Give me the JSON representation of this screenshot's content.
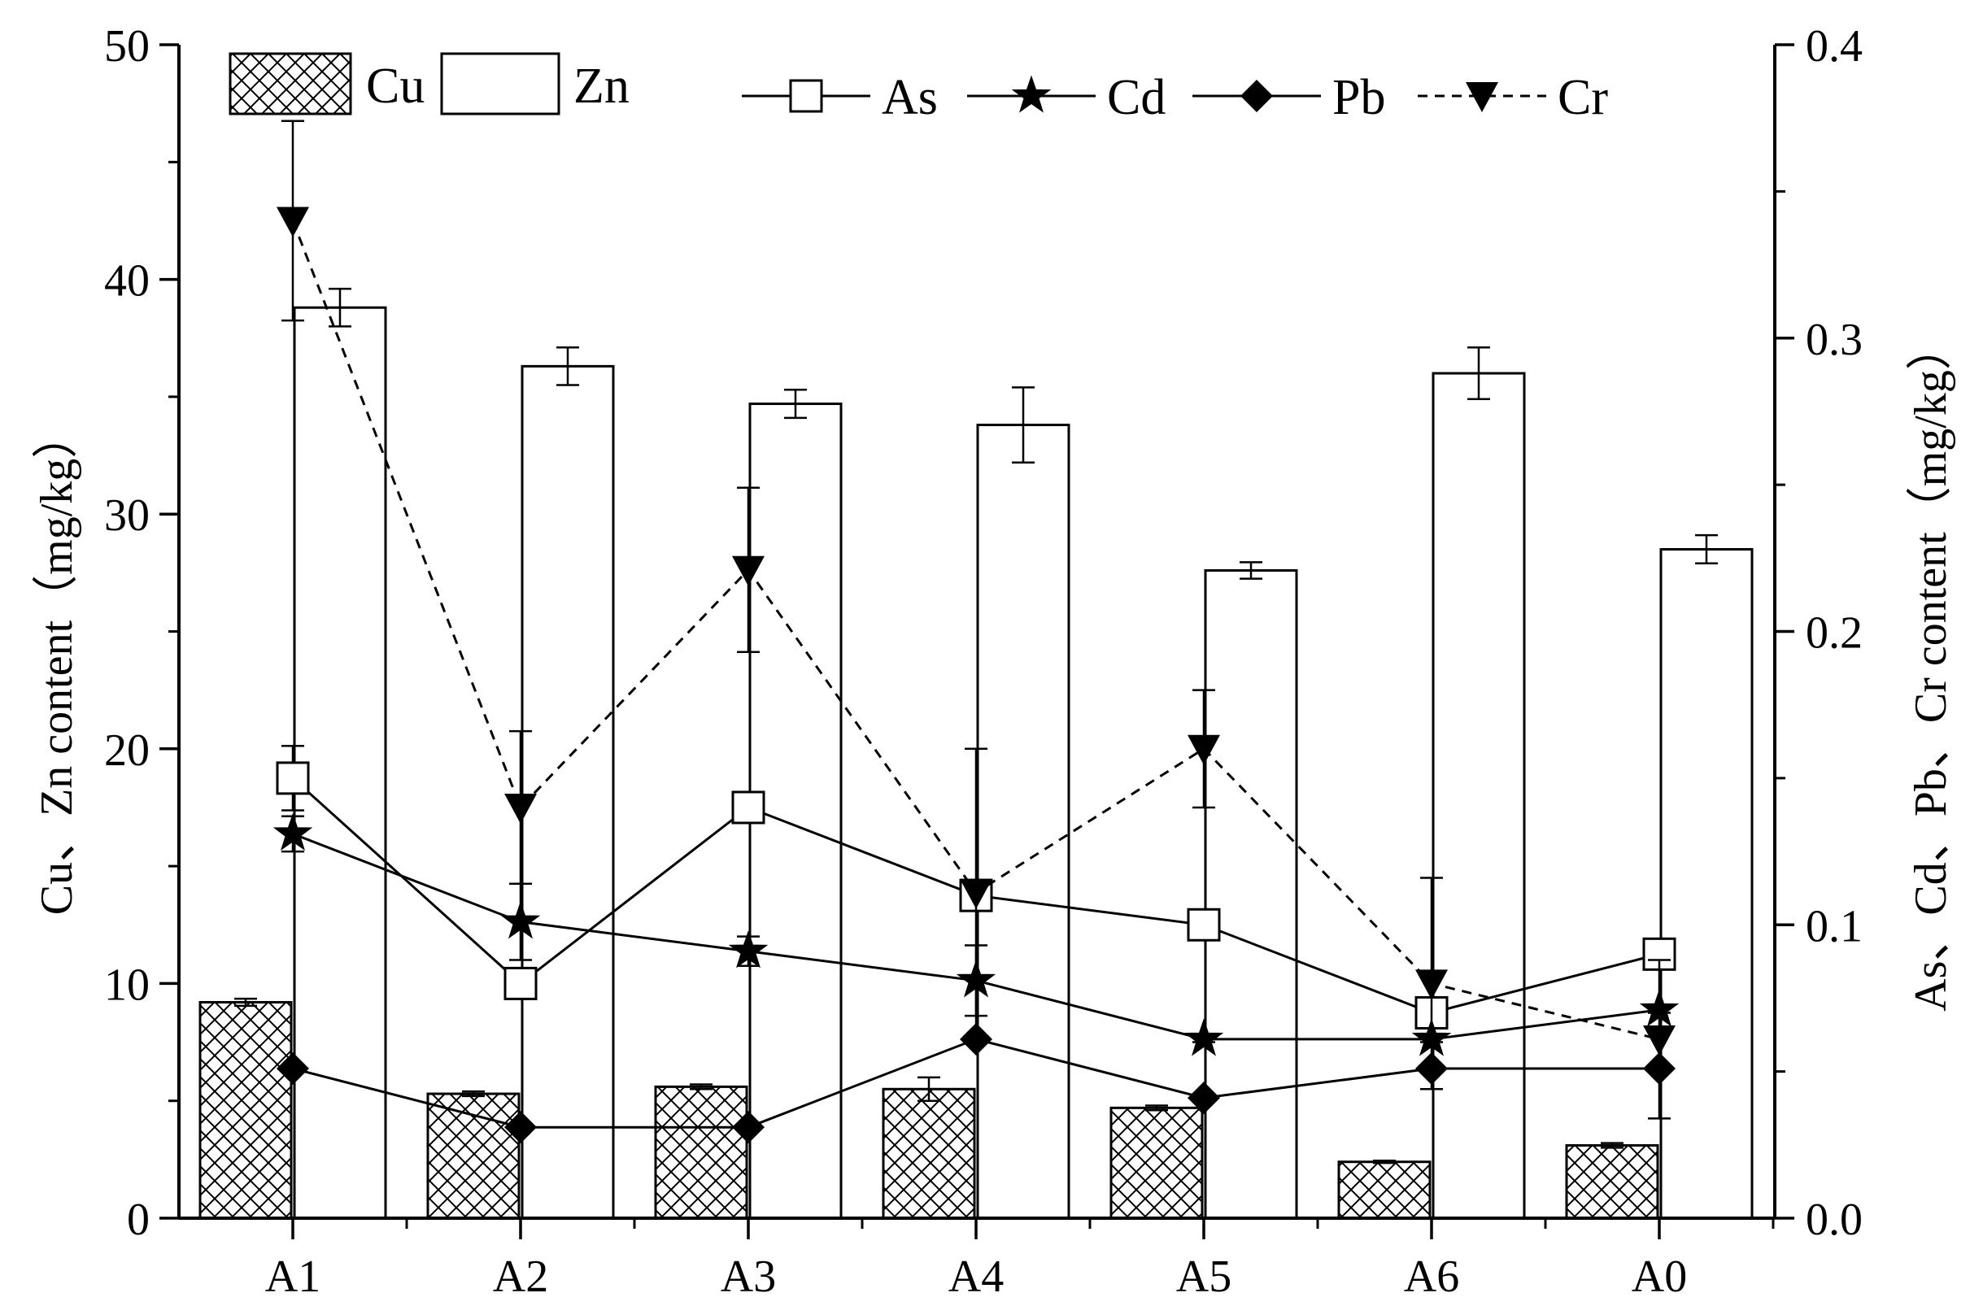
{
  "chart_data": {
    "type": "bar",
    "title": "",
    "categories": [
      "A1",
      "A2",
      "A3",
      "A4",
      "A5",
      "A6",
      "A0"
    ],
    "left_axis": {
      "label": "Cu、Zn content（mg/kg）",
      "ylim": [
        0,
        50
      ],
      "ticks": [
        0,
        10,
        20,
        30,
        40,
        50
      ],
      "tick_labels": [
        "0",
        "10",
        "20",
        "30",
        "40",
        "50"
      ]
    },
    "right_axis": {
      "label": "As、Cd、Pb、Cr content（mg/kg）",
      "ylim": [
        0,
        0.4
      ],
      "ticks": [
        0,
        0.1,
        0.2,
        0.3,
        0.4
      ],
      "tick_labels": [
        "0.0",
        "0.1",
        "0.2",
        "0.3",
        "0.4"
      ]
    },
    "bar_series": [
      {
        "name": "Cu",
        "axis": "left",
        "pattern": "crosshatch",
        "values": [
          9.2,
          5.3,
          5.6,
          5.5,
          4.7,
          2.4,
          3.1
        ],
        "errors": [
          0.15,
          0.1,
          0.1,
          0.5,
          0.1,
          0.05,
          0.1
        ]
      },
      {
        "name": "Zn",
        "axis": "left",
        "pattern": "open",
        "values": [
          38.8,
          36.3,
          34.7,
          33.8,
          27.6,
          36.0,
          28.5
        ],
        "errors": [
          0.8,
          0.8,
          0.6,
          1.6,
          0.35,
          1.1,
          0.6
        ]
      }
    ],
    "line_series": [
      {
        "name": "As",
        "axis": "right",
        "marker": "open-square",
        "dash": "solid",
        "values": [
          0.15,
          0.08,
          0.14,
          0.11,
          0.1,
          0.07,
          0.09
        ],
        "errors": [
          0.011,
          0.004,
          0.001,
          0.001,
          0.001,
          0.003,
          0.001
        ]
      },
      {
        "name": "Cd",
        "axis": "right",
        "marker": "star",
        "dash": "solid",
        "values": [
          0.131,
          0.101,
          0.091,
          0.081,
          0.061,
          0.061,
          0.071
        ],
        "errors": [
          0.006,
          0.013,
          0.005,
          0.012,
          0.001,
          0.001,
          0.001
        ]
      },
      {
        "name": "Pb",
        "axis": "right",
        "marker": "diamond",
        "dash": "solid",
        "values": [
          0.051,
          0.031,
          0.031,
          0.061,
          0.041,
          0.051,
          0.051
        ],
        "errors": [
          0.001,
          0.001,
          0.001,
          0.001,
          0.001,
          0.001,
          0.001
        ]
      },
      {
        "name": "Cr",
        "axis": "right",
        "marker": "down-triangle",
        "dash": "dashed",
        "values": [
          0.34,
          0.14,
          0.221,
          0.111,
          0.16,
          0.08,
          0.061
        ],
        "errors": [
          0.034,
          0.026,
          0.028,
          0.049,
          0.02,
          0.036,
          0.027
        ]
      }
    ],
    "legend": {
      "bars": [
        "Cu",
        "Zn"
      ],
      "lines": [
        "As",
        "Cd",
        "Pb",
        "Cr"
      ],
      "position": "top"
    },
    "grid": false
  }
}
